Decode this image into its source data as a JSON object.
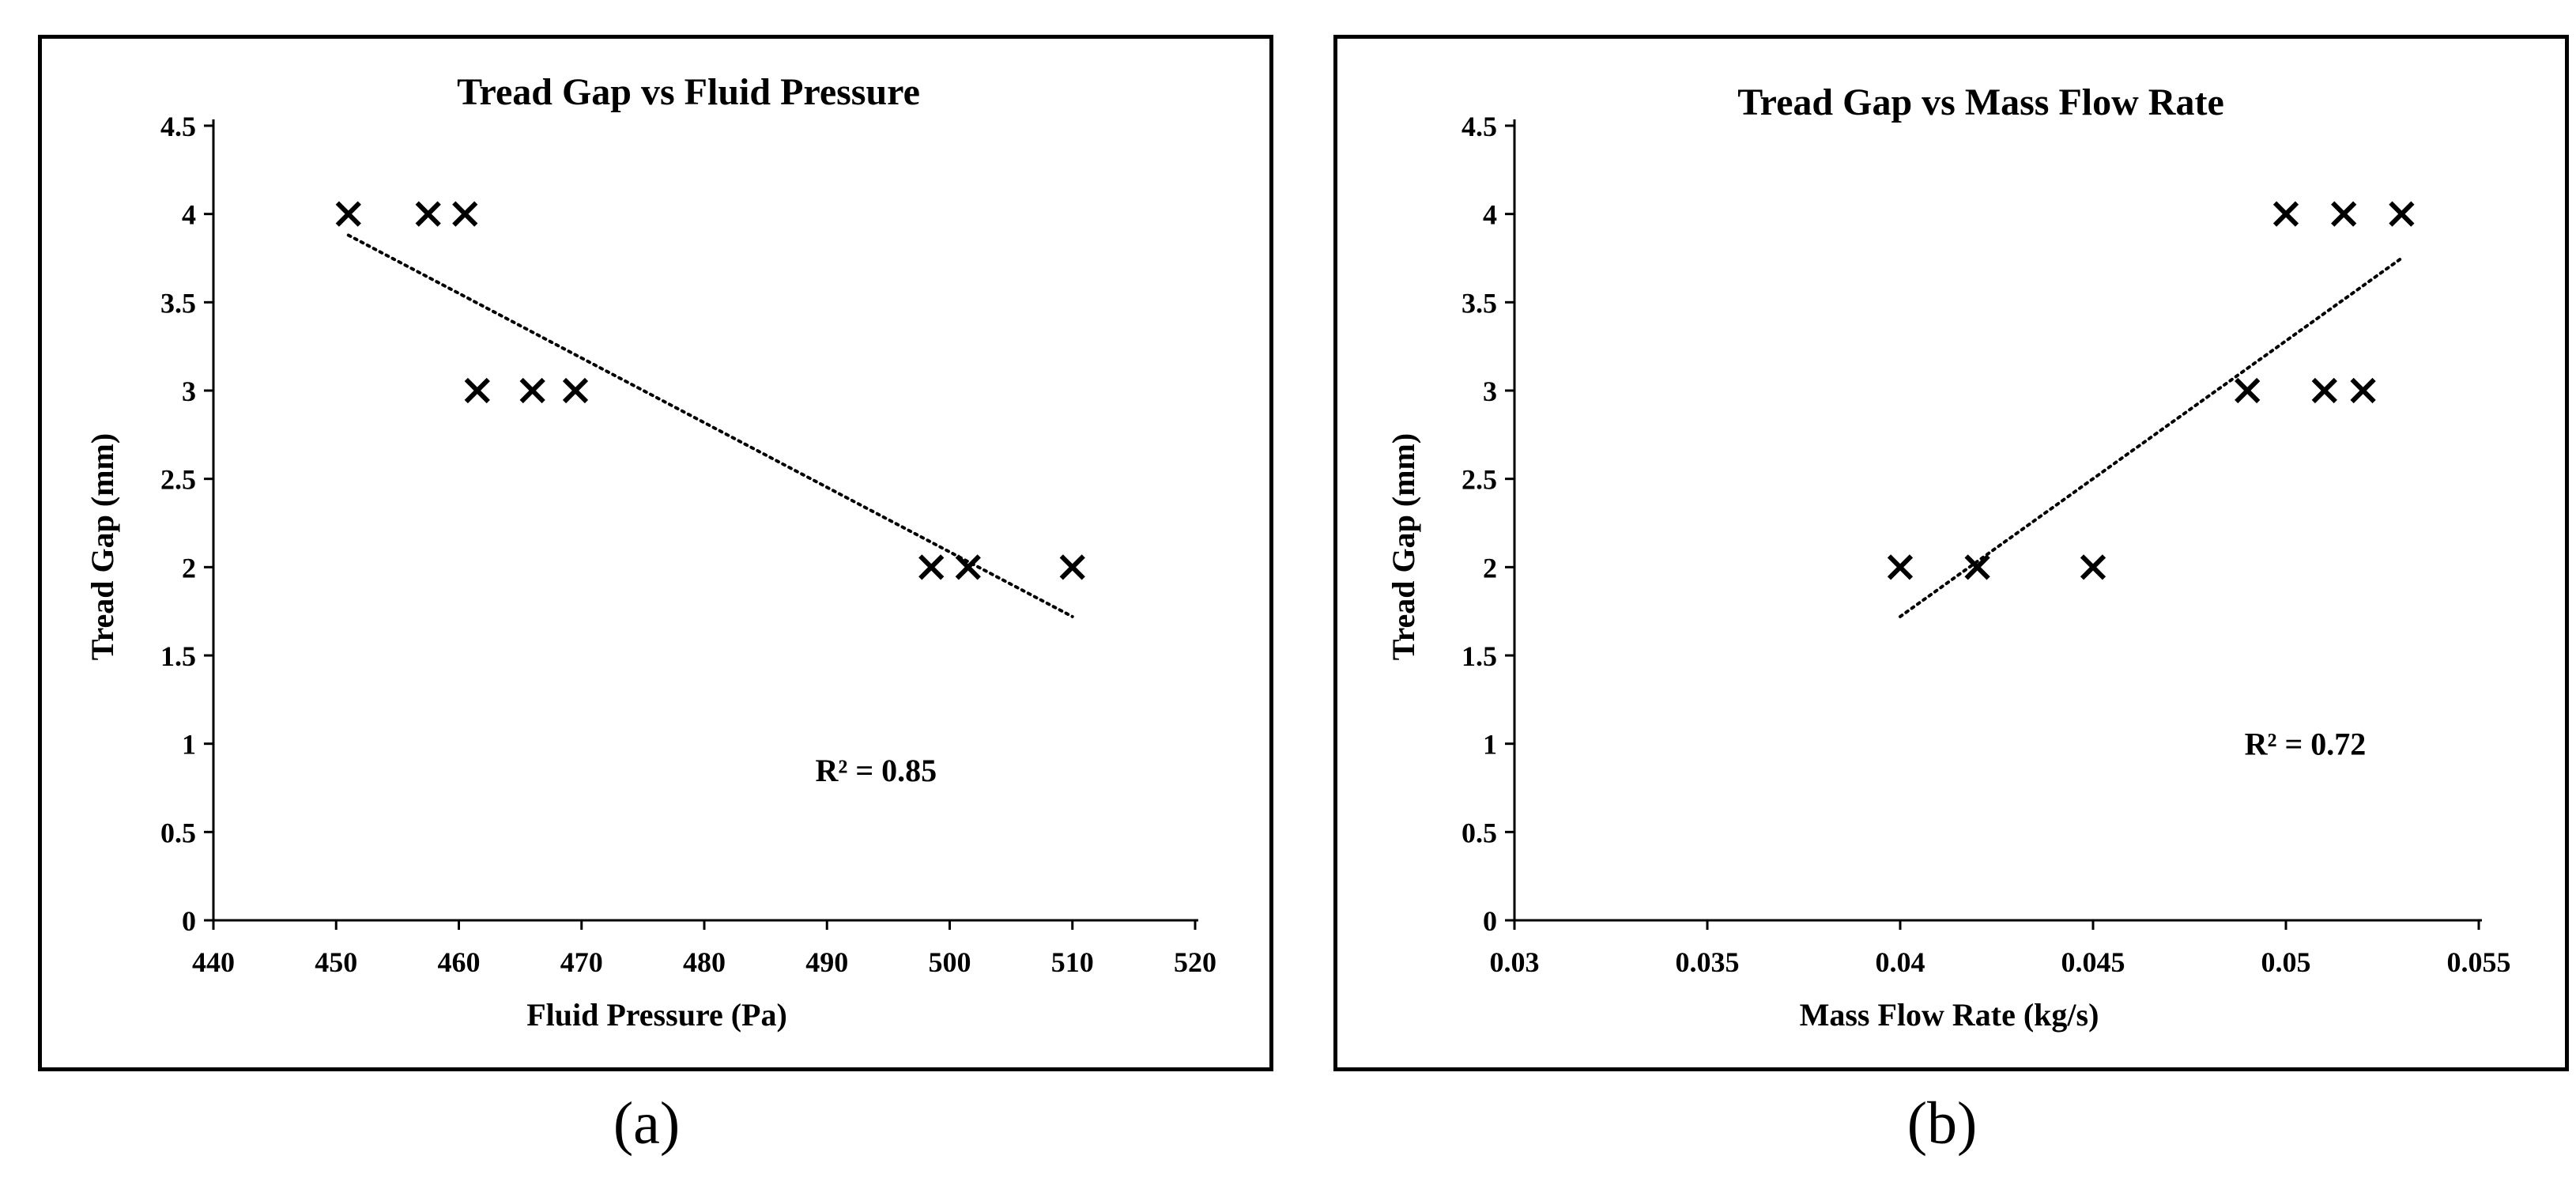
{
  "chart_data": [
    {
      "type": "scatter",
      "title": "Tread Gap vs Fluid Pressure",
      "xlabel": "Fluid Pressure (Pa)",
      "ylabel": "Tread Gap (mm)",
      "xlim": [
        440,
        520
      ],
      "ylim": [
        0,
        4.5
      ],
      "xticks": [
        440,
        450,
        460,
        470,
        480,
        490,
        500,
        510,
        520
      ],
      "xtick_labels": [
        "440",
        "450",
        "460",
        "470",
        "480",
        "490",
        "500",
        "510",
        "520"
      ],
      "yticks": [
        0,
        0.5,
        1,
        1.5,
        2,
        2.5,
        3,
        3.5,
        4,
        4.5
      ],
      "ytick_labels": [
        "0",
        "0.5",
        "1",
        "1.5",
        "2",
        "2.5",
        "3",
        "3.5",
        "4",
        "4.5"
      ],
      "marker": "x",
      "series": [
        {
          "name": "Tread Gap",
          "x": [
            451,
            457.5,
            460.5,
            461.5,
            466,
            469.5,
            498.5,
            501.5,
            510
          ],
          "y": [
            4,
            4,
            4,
            3,
            3,
            3,
            2,
            2,
            2
          ]
        }
      ],
      "trendline": {
        "style": "dotted",
        "x": [
          451,
          510
        ],
        "y": [
          3.88,
          1.72
        ]
      },
      "annotation": "R² = 0.85",
      "annotation_at": [
        494,
        0.85
      ],
      "grid": false,
      "caption": "(a)"
    },
    {
      "type": "scatter",
      "title": "Tread Gap vs Mass Flow Rate",
      "xlabel": "Mass Flow Rate (kg/s)",
      "ylabel": "Tread Gap (mm)",
      "xlim": [
        0.03,
        0.055
      ],
      "ylim": [
        0,
        4.5
      ],
      "xticks": [
        0.03,
        0.035,
        0.04,
        0.045,
        0.05,
        0.055
      ],
      "xtick_labels": [
        "0.03",
        "0.035",
        "0.04",
        "0.045",
        "0.05",
        "0.055"
      ],
      "yticks": [
        0,
        0.5,
        1,
        1.5,
        2,
        2.5,
        3,
        3.5,
        4,
        4.5
      ],
      "ytick_labels": [
        "0",
        "0.5",
        "1",
        "1.5",
        "2",
        "2.5",
        "3",
        "3.5",
        "4",
        "4.5"
      ],
      "marker": "x",
      "series": [
        {
          "name": "Tread Gap",
          "x": [
            0.04,
            0.042,
            0.045,
            0.049,
            0.05,
            0.051,
            0.0515,
            0.052,
            0.053
          ],
          "y": [
            2,
            2,
            2,
            3,
            4,
            3,
            4,
            3,
            4
          ]
        }
      ],
      "trendline": {
        "style": "dotted",
        "x": [
          0.04,
          0.053
        ],
        "y": [
          1.72,
          3.75
        ]
      },
      "annotation": "R² = 0.72",
      "annotation_at": [
        0.0505,
        1.0
      ],
      "grid": false,
      "caption": "(b)"
    }
  ]
}
